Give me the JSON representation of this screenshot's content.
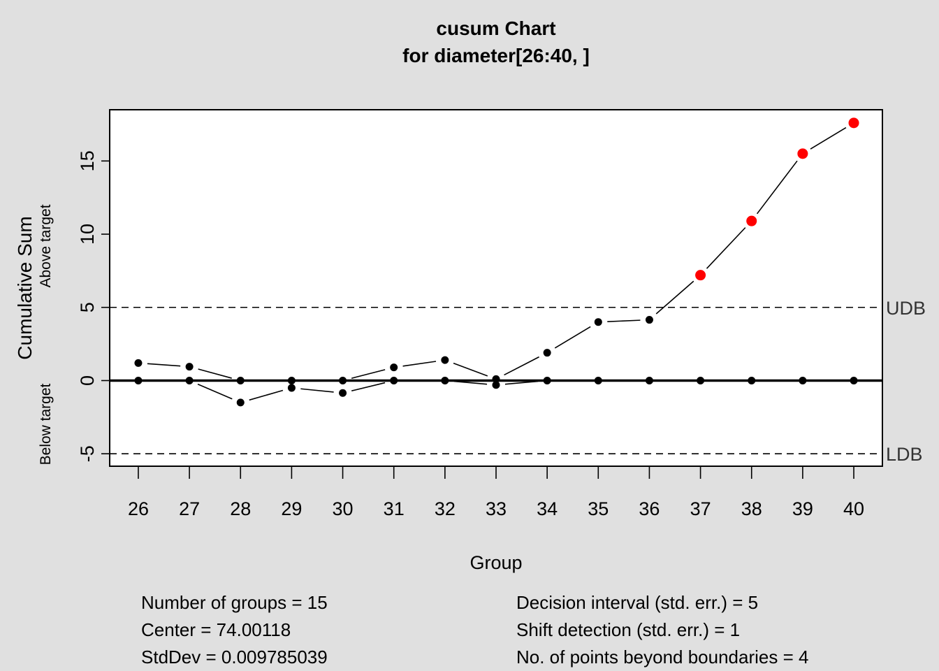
{
  "chart_data": {
    "type": "line",
    "title": "cusum Chart",
    "subtitle": "for diameter[26:40, ]",
    "xlabel": "Group",
    "ylabel": "Cumulative Sum",
    "ylabel_upper": "Above target",
    "ylabel_lower": "Below target",
    "x": [
      26,
      27,
      28,
      29,
      30,
      31,
      32,
      33,
      34,
      35,
      36,
      37,
      38,
      39,
      40
    ],
    "x_tick_labels": [
      "26",
      "27",
      "28",
      "29",
      "30",
      "31",
      "32",
      "33",
      "34",
      "35",
      "36",
      "37",
      "38",
      "39",
      "40"
    ],
    "ylim": [
      -5.85,
      18.5
    ],
    "y_ticks": [
      -5,
      0,
      5,
      10,
      15
    ],
    "y_tick_labels": [
      "-5",
      "0",
      "5",
      "10",
      "15"
    ],
    "grid": false,
    "series": [
      {
        "values": [
          1.2,
          0.95,
          0.0,
          0.0,
          0.0,
          0.9,
          1.4,
          0.1,
          1.9,
          4.0,
          4.15,
          7.2,
          10.9,
          15.5,
          17.6
        ],
        "violations": [
          false,
          false,
          false,
          false,
          false,
          false,
          false,
          false,
          false,
          false,
          false,
          true,
          true,
          true,
          true
        ]
      },
      {
        "values": [
          0.0,
          0.0,
          -1.5,
          -0.5,
          -0.85,
          0.0,
          0.0,
          -0.3,
          0.0,
          0.0,
          0.0,
          0.0,
          0.0,
          0.0,
          0.0
        ]
      }
    ],
    "center_line": 0,
    "upper_boundary": {
      "value": 5,
      "label": "UDB"
    },
    "lower_boundary": {
      "value": -5,
      "label": "LDB"
    },
    "colors": {
      "background": "#e0e0e0",
      "plot_background": "#ffffff",
      "points": "#000000",
      "violation_points": "#ff0000",
      "boundary_label": "#333333"
    }
  },
  "stats": {
    "left": [
      "Number of groups = 15",
      "Center = 74.00118",
      "StdDev = 0.009785039"
    ],
    "right": [
      "Decision interval (std. err.) = 5",
      "Shift detection (std. err.) = 1",
      "No. of points beyond boundaries = 4"
    ]
  }
}
